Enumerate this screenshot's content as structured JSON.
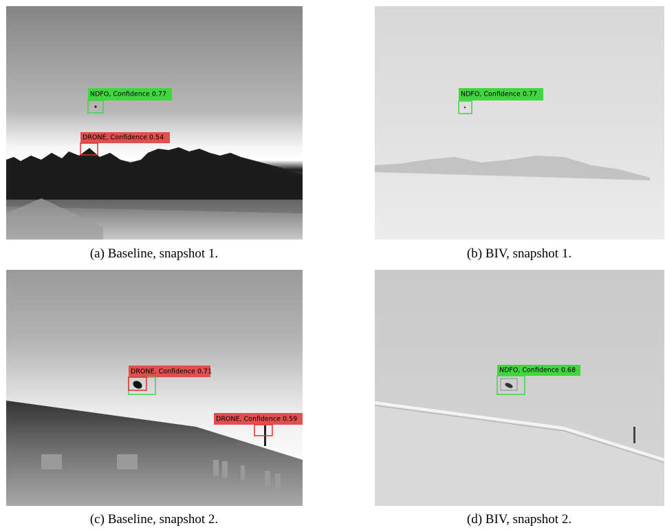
{
  "panels": [
    {
      "caption": "(a) Baseline, snapshot 1.",
      "detections": [
        "NDFO, Confidence 0.77",
        "DRONE, Confidence 0.54"
      ]
    },
    {
      "caption": "(b) BIV, snapshot 1.",
      "detections": [
        "NDFO, Confidence 0.77"
      ]
    },
    {
      "caption": "(c) Baseline, snapshot 2.",
      "detections": [
        "DRONE, Confidence 0.71",
        "DRONE, Confidence 0.59"
      ]
    },
    {
      "caption": "(d) BIV, snapshot 2.",
      "detections": [
        "NDFO, Confidence 0.68"
      ]
    }
  ]
}
